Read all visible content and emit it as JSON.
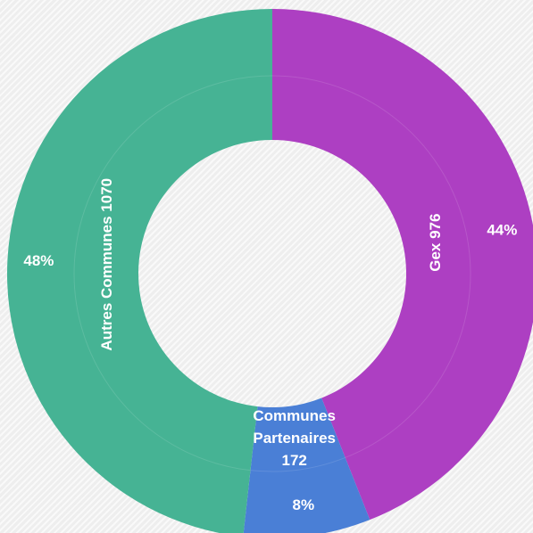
{
  "chart_data": {
    "type": "donut",
    "title": "",
    "series": [
      {
        "categories": [
          "Gex",
          "Communes Partenaires",
          "Autres Communes"
        ],
        "values": [
          976,
          172,
          1070
        ],
        "percent_labels": [
          "44%",
          "8%",
          "48%"
        ],
        "inner_labels": [
          [
            "Gex 976"
          ],
          [
            "Communes",
            "Partenaires",
            "172"
          ],
          [
            "Autres Communes 1070"
          ]
        ],
        "colors": [
          "#ad3fc2",
          "#4a7fd6",
          "#46b394"
        ]
      }
    ],
    "start_angle_deg": 0,
    "direction": "clockwise"
  }
}
